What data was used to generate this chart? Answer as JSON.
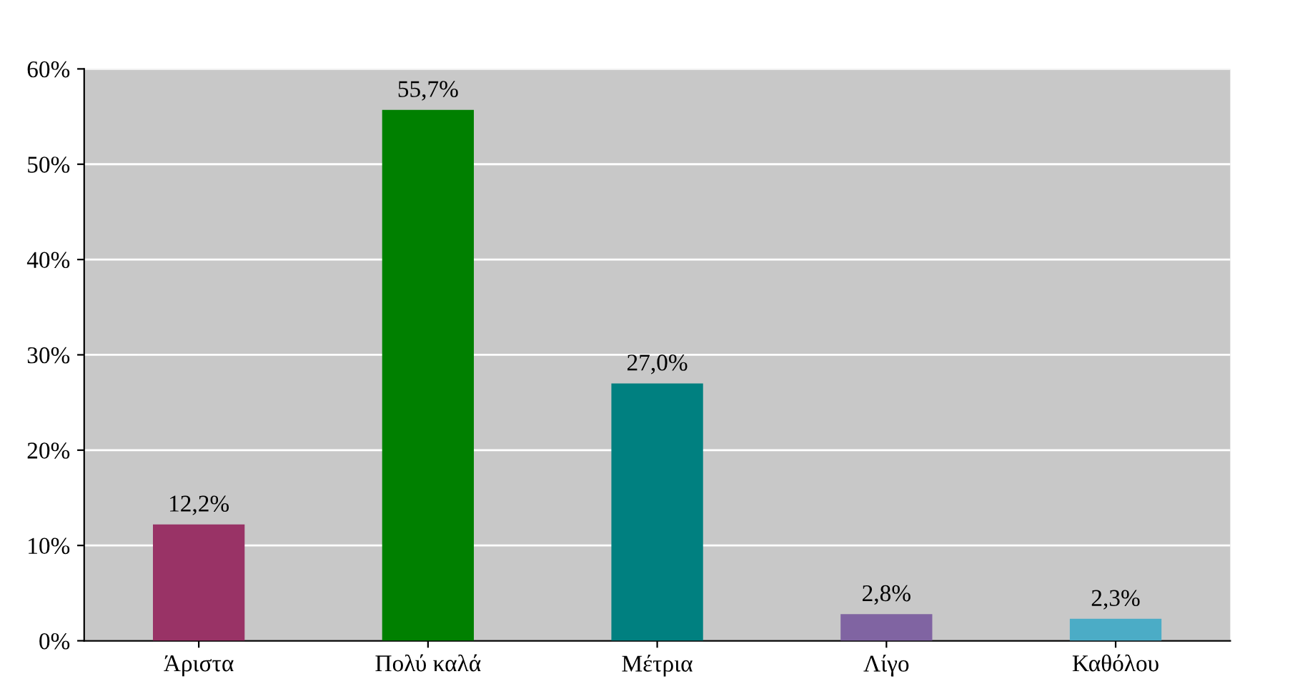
{
  "chart_data": {
    "type": "bar",
    "categories": [
      "Άριστα",
      "Πολύ καλά",
      "Μέτρια",
      "Λίγο",
      "Καθόλου"
    ],
    "values": [
      12.2,
      55.7,
      27.0,
      2.8,
      2.3
    ],
    "colors": [
      "#993366",
      "#008000",
      "#008080",
      "#8064a2",
      "#4bacc6"
    ],
    "value_labels": [
      "12,2%",
      "55,7%",
      "27,0%",
      "2,8%",
      "2,3%"
    ],
    "ylim": [
      0,
      60
    ],
    "yticks": [
      {
        "value": 0,
        "label": "0%"
      },
      {
        "value": 10,
        "label": "10%"
      },
      {
        "value": 20,
        "label": "20%"
      },
      {
        "value": 30,
        "label": "30%"
      },
      {
        "value": 40,
        "label": "40%"
      },
      {
        "value": 50,
        "label": "50%"
      },
      {
        "value": 60,
        "label": "60%"
      }
    ],
    "grid": true
  }
}
